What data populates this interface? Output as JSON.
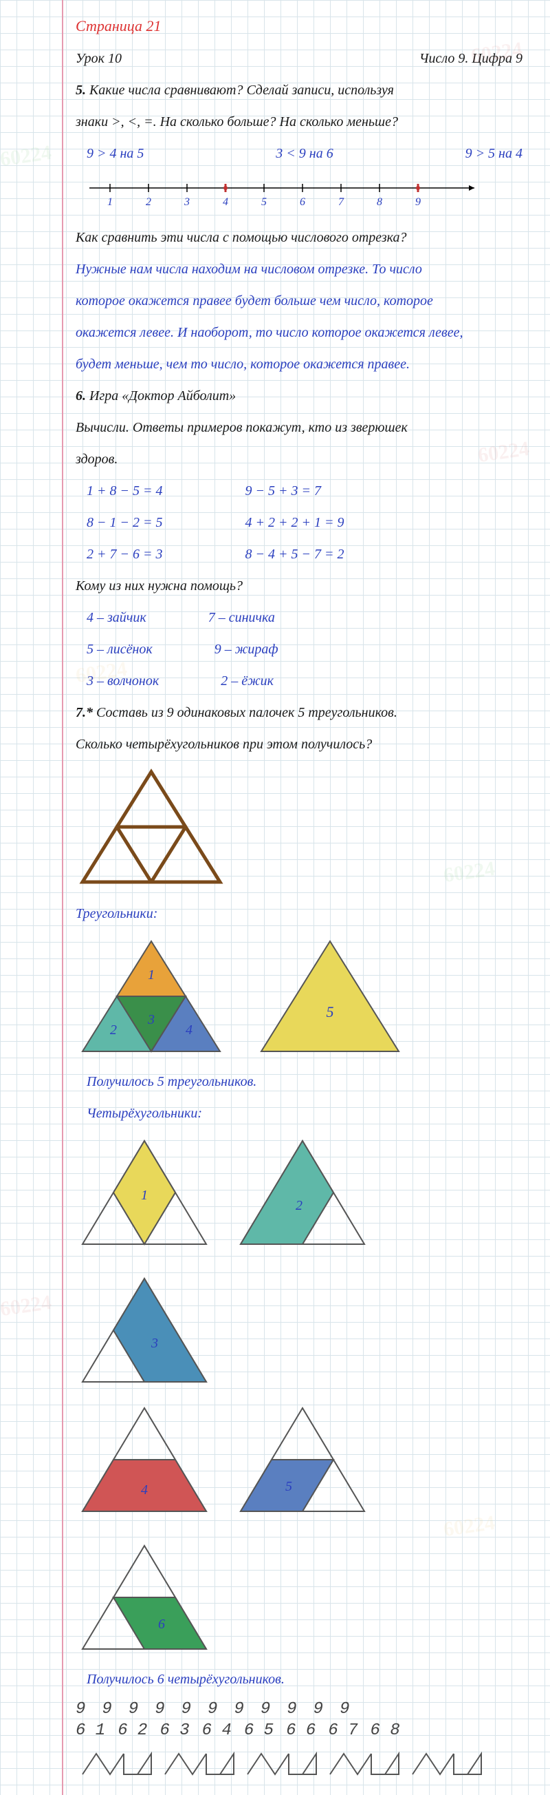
{
  "header": {
    "page_title": "Страница 21",
    "lesson": "Урок 10",
    "topic": "Число 9. Цифра 9"
  },
  "q5": {
    "num": "5.",
    "text1": "Какие числа сравнивают? Сделай записи, используя",
    "text2": "знаки >, <, =. На сколько больше? На сколько меньше?",
    "ans1": "9 > 4 на 5",
    "ans2": "3 < 9 на 6",
    "ans3": "9 > 5 на 4",
    "numberline": {
      "ticks": [
        1,
        2,
        3,
        4,
        5,
        6,
        7,
        8,
        9
      ],
      "marked": [
        4,
        9
      ],
      "color_tick": "#2a3fbf",
      "color_mark": "#c03030"
    },
    "q_below": "Как сравнить эти числа с помощью числового отрезка?",
    "expl1": "Нужные нам числа находим на числовом отрезке. То число",
    "expl2": "которое окажется правее будет больше чем число, которое",
    "expl3": "окажется левее. И наоборот, то число которое окажется левее,",
    "expl4": "будет меньше, чем то число, которое окажется правее."
  },
  "q6": {
    "num": "6.",
    "title": "Игра «Доктор Айболит»",
    "text1": "Вычисли. Ответы примеров покажут, кто из зверюшек",
    "text2": "здоров.",
    "calc": [
      [
        "1 + 8 − 5 = 4",
        "9 − 5 + 3 = 7"
      ],
      [
        "8 − 1 − 2 = 5",
        "4 + 2 + 2 + 1 = 9"
      ],
      [
        "2 + 7 − 6 = 3",
        "8 − 4 + 5 − 7 = 2"
      ]
    ],
    "q_help": "Кому из них нужна помощь?",
    "animals": [
      [
        "4 – зайчик",
        "7 – синичка"
      ],
      [
        "5 – лисёнок",
        "9 – жираф"
      ],
      [
        "3 – волчонок",
        "2 – ёжик"
      ]
    ]
  },
  "q7": {
    "num": "7.*",
    "text1": "Составь из 9 одинаковых палочек 5 треугольников.",
    "text2": "Сколько четырёхугольников при этом получилось?",
    "outline_color": "#7a4a1a",
    "outline_stroke": 5,
    "label_tri": "Треугольники:",
    "triangles": {
      "colors": {
        "t1": "#e8a23a",
        "t2": "#5fb8a8",
        "t3": "#3a8f4a",
        "t4": "#5a7fc0",
        "t5": "#e8d85a"
      },
      "labels": [
        "1",
        "2",
        "3",
        "4",
        "5"
      ],
      "stroke": "#555"
    },
    "tri_result": "Получилось 5 треугольников.",
    "label_quad": "Четырёхугольники:",
    "quads": {
      "colors": {
        "q1": "#e8d85a",
        "q2": "#5fb8a8",
        "q3": "#4a8fb8",
        "q4": "#d05555",
        "q5": "#5a7fc0",
        "q6": "#3a9f5a"
      },
      "labels": [
        "1",
        "2",
        "3",
        "4",
        "5",
        "6"
      ],
      "outline": "#555"
    },
    "quad_result": "Получилось 6 четырёхугольников."
  },
  "bottom": {
    "row1": [
      "9",
      "9",
      "9",
      "9",
      "9",
      "9",
      "9",
      "9",
      "9",
      "9",
      "9"
    ],
    "row2": [
      "6 1",
      "6 2",
      "6 3",
      "6 4",
      "6 5",
      "6 6",
      "6 7",
      "6 8"
    ]
  },
  "colors": {
    "grid": "#d8e4ea",
    "margin": "#e59ab0",
    "red": "#d33",
    "black": "#1a1a1a",
    "blue": "#2a3fbf"
  }
}
